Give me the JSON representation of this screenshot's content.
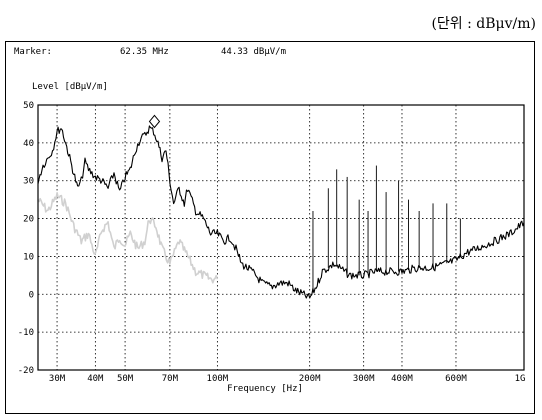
{
  "unit_note": "(단위 : dBμv/m)",
  "marker": {
    "label": "Marker:",
    "freq": "62.35 MHz",
    "level": "44.33 dBμV/m"
  },
  "chart_data": {
    "type": "line",
    "xscale": "log",
    "xlim": [
      26,
      1000
    ],
    "ylim": [
      -20,
      50
    ],
    "grid": true,
    "xlabel": "Frequency [Hz]",
    "ylabel": "Level [dBμV/m]",
    "x_ticks": [
      {
        "value": 30,
        "label": "30M"
      },
      {
        "value": 40,
        "label": "40M"
      },
      {
        "value": 50,
        "label": "50M"
      },
      {
        "value": 70,
        "label": "70M"
      },
      {
        "value": 100,
        "label": "100M"
      },
      {
        "value": 200,
        "label": "200M"
      },
      {
        "value": 300,
        "label": "300M"
      },
      {
        "value": 400,
        "label": "400M"
      },
      {
        "value": 600,
        "label": "600M"
      },
      {
        "value": 1000,
        "label": "1G"
      }
    ],
    "y_ticks": [
      {
        "value": 50,
        "label": "50"
      },
      {
        "value": 40,
        "label": "40"
      },
      {
        "value": 30,
        "label": "30"
      },
      {
        "value": 20,
        "label": "20"
      },
      {
        "value": 10,
        "label": "10"
      },
      {
        "value": 0,
        "label": "0"
      },
      {
        "value": -10,
        "label": "-10"
      },
      {
        "value": -20,
        "label": "-20"
      }
    ],
    "marker_point": {
      "x": 62.35,
      "y": 44.33
    },
    "series": [
      {
        "color": "#000000",
        "x": [
          26,
          27,
          28,
          29,
          30,
          31,
          32,
          33,
          34,
          35,
          36,
          37,
          38,
          40,
          42,
          44,
          46,
          48,
          50,
          52,
          54,
          56,
          58,
          60,
          62,
          64,
          66,
          68,
          70,
          72,
          75,
          78,
          80,
          85,
          90,
          95,
          100,
          105,
          110,
          115,
          120,
          130,
          140,
          150,
          160,
          170,
          180,
          190,
          200,
          210,
          220,
          230,
          240,
          250,
          270,
          300,
          330,
          360,
          400,
          450,
          500,
          550,
          600,
          650,
          700,
          800,
          900,
          1000
        ],
        "y": [
          30,
          34,
          36,
          38,
          43,
          44,
          40,
          36,
          32,
          28,
          30,
          35,
          33,
          31,
          30,
          28,
          32,
          27,
          31,
          33,
          38,
          41,
          42,
          44,
          43,
          40,
          36,
          38,
          30,
          24,
          28,
          24,
          28,
          22,
          20,
          16,
          16,
          14,
          15,
          12,
          8,
          6,
          3,
          2,
          3,
          3,
          1,
          0,
          -1,
          2,
          6,
          7,
          8,
          7,
          5,
          5,
          6,
          6,
          6,
          7,
          7,
          8,
          9,
          11,
          12,
          14,
          16,
          19
        ]
      },
      {
        "color": "#d0d0d0",
        "x": [
          26,
          28,
          30,
          32,
          34,
          36,
          38,
          40,
          42,
          44,
          46,
          48,
          50,
          52,
          55,
          58,
          60,
          63,
          66,
          70,
          75,
          80,
          85,
          90,
          95,
          100
        ],
        "y": [
          25,
          22,
          26,
          24,
          18,
          14,
          16,
          10,
          17,
          19,
          12,
          15,
          13,
          16,
          12,
          14,
          20,
          18,
          12,
          8,
          14,
          10,
          6,
          5,
          4,
          4
        ]
      }
    ],
    "spikes": [
      {
        "x": 205,
        "y": 22
      },
      {
        "x": 230,
        "y": 28
      },
      {
        "x": 245,
        "y": 33
      },
      {
        "x": 265,
        "y": 31
      },
      {
        "x": 290,
        "y": 25
      },
      {
        "x": 310,
        "y": 22
      },
      {
        "x": 330,
        "y": 34
      },
      {
        "x": 355,
        "y": 27
      },
      {
        "x": 390,
        "y": 30
      },
      {
        "x": 420,
        "y": 25
      },
      {
        "x": 455,
        "y": 22
      },
      {
        "x": 505,
        "y": 24
      },
      {
        "x": 560,
        "y": 24
      },
      {
        "x": 620,
        "y": 20
      }
    ]
  }
}
